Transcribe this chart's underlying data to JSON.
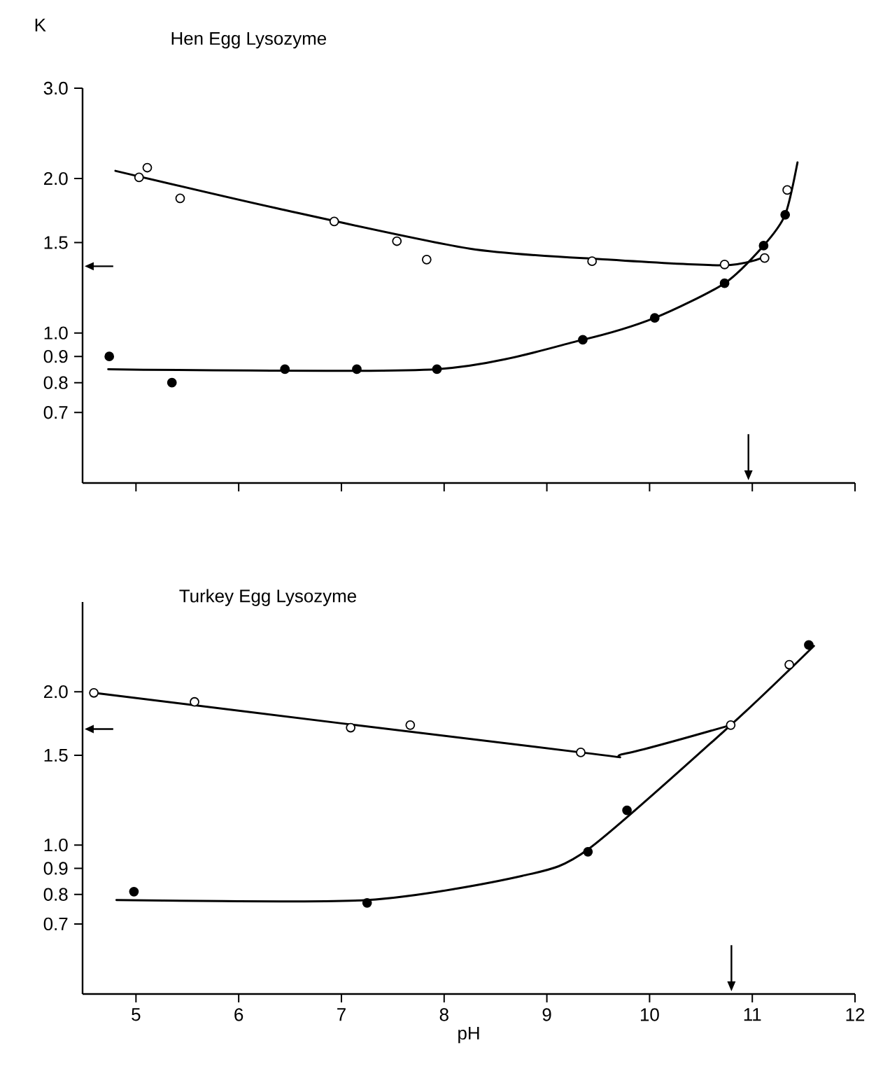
{
  "chart_data": [
    {
      "type": "scatter",
      "title": "Hen Egg Lysozyme",
      "ylabel": "K",
      "log": "y",
      "tick_labels": "y",
      "xlim": [
        4.48,
        12
      ],
      "xticks": [
        5,
        6,
        7,
        8,
        9,
        10,
        11,
        12
      ],
      "ylim": [
        0.51,
        3.0
      ],
      "yticks": [
        {
          "value": 3.0,
          "label": "3.0"
        },
        {
          "value": 2.0,
          "label": "2.0"
        },
        1.5,
        {
          "value": 1.0,
          "label": "1.0"
        },
        0.9,
        0.8,
        0.7
      ],
      "series": [
        {
          "color": "#ffffff",
          "marker": "circle",
          "x": [
            5.03,
            5.11,
            5.43,
            6.93,
            7.54,
            7.83,
            9.44,
            10.73,
            11.12,
            11.34
          ],
          "values": [
            2.01,
            2.1,
            1.83,
            1.65,
            1.51,
            1.39,
            1.38,
            1.36,
            1.4,
            1.9
          ]
        },
        {
          "color": "#000000",
          "marker": "circle",
          "x": [
            4.74,
            5.35,
            6.45,
            7.15,
            7.93,
            9.35,
            10.05,
            10.73,
            11.11,
            11.32
          ],
          "values": [
            0.9,
            0.8,
            0.85,
            0.85,
            0.85,
            0.97,
            1.07,
            1.25,
            1.48,
            1.7
          ]
        },
        {
          "type": "line",
          "marker": "none",
          "color": "#000000",
          "x": [
            4.8,
            6.37,
            8.25,
            9.59,
            10.73,
            11.09
          ],
          "values": [
            2.07,
            1.75,
            1.46,
            1.39,
            1.355,
            1.4
          ]
        },
        {
          "type": "line",
          "marker": "none",
          "color": "#000000",
          "x": [
            4.73,
            7.93,
            9.35,
            10.05,
            10.73,
            11.11,
            11.32,
            11.44
          ],
          "values": [
            0.85,
            0.85,
            0.97,
            1.07,
            1.25,
            1.48,
            1.7,
            2.15
          ]
        }
      ]
    },
    {
      "type": "scatter",
      "title": "Turkey Egg Lysozyme",
      "xlabel": "pH",
      "log": "y",
      "xlim": [
        4.48,
        12
      ],
      "xticks": [
        5,
        6,
        7,
        8,
        9,
        10,
        11,
        12
      ],
      "ylim": [
        0.51,
        3.0
      ],
      "yticks": [
        {
          "value": 2.0,
          "label": "2.0"
        },
        1.5,
        {
          "value": 1.0,
          "label": "1.0"
        },
        0.9,
        0.8,
        0.7
      ],
      "series": [
        {
          "color": "#ffffff",
          "marker": "circle",
          "x": [
            4.59,
            5.57,
            7.09,
            7.67,
            9.33,
            10.79,
            11.36
          ],
          "values": [
            1.99,
            1.91,
            1.7,
            1.72,
            1.52,
            1.72,
            2.26
          ]
        },
        {
          "color": "#000000",
          "marker": "circle",
          "x": [
            4.98,
            7.25,
            9.4,
            9.78,
            11.55
          ],
          "values": [
            0.81,
            0.77,
            0.97,
            1.17,
            2.47
          ]
        },
        {
          "type": "line",
          "marker": "none",
          "color": "#000000",
          "x": [
            4.59,
            9.33,
            9.75,
            10.79
          ],
          "values": [
            1.99,
            1.52,
            1.51,
            1.72
          ]
        },
        {
          "type": "line",
          "marker": "none",
          "color": "#000000",
          "x": [
            4.81,
            7.25,
            8.76,
            9.4,
            10.79,
            11.6
          ],
          "values": [
            0.78,
            0.78,
            0.87,
            0.98,
            1.72,
            2.46
          ]
        }
      ]
    }
  ]
}
